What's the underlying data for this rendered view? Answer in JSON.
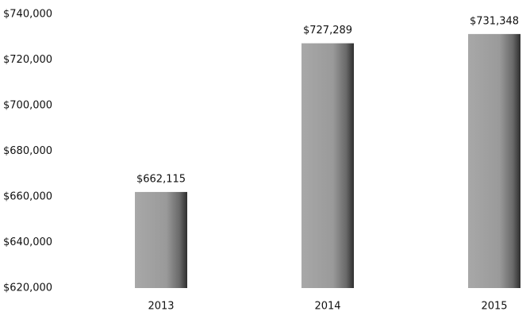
{
  "chart_data": {
    "type": "bar",
    "categories": [
      "2013",
      "2014",
      "2015"
    ],
    "values": [
      662115,
      727289,
      731348
    ],
    "value_labels": [
      "$662,115",
      "$727,289",
      "$731,348"
    ],
    "color": "#8c8c8c",
    "ylim": [
      620000,
      740000
    ],
    "yticks": [
      {
        "value": 620000,
        "label": "$620,000"
      },
      {
        "value": 640000,
        "label": "$640,000"
      },
      {
        "value": 660000,
        "label": "$660,000"
      },
      {
        "value": 680000,
        "label": "$680,000"
      },
      {
        "value": 700000,
        "label": "$700,000"
      },
      {
        "value": 720000,
        "label": "$720,000"
      },
      {
        "value": 740000,
        "label": "$740,000"
      }
    ],
    "grid": false
  }
}
